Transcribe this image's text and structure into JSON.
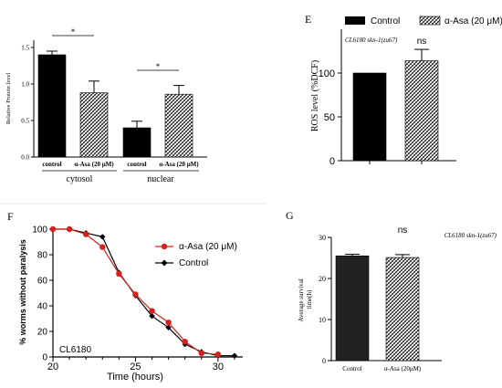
{
  "chart_data": [
    {
      "panel": "",
      "type": "bar",
      "title": "",
      "xlabel": "",
      "ylabel": "Relative Protein level",
      "ylim": [
        0,
        1.6
      ],
      "yticks": [
        "0.0",
        "0.5",
        "1.0",
        "1.5"
      ],
      "ytick_values": [
        0,
        0.5,
        1.0,
        1.5
      ],
      "categories": [
        "control",
        "α-Asa (20 μM)",
        "control",
        "α-Asa (20 μM)"
      ],
      "groups": [
        "cytosol",
        "nuclear"
      ],
      "values": [
        1.4,
        0.88,
        0.4,
        0.86
      ],
      "errors": [
        0.05,
        0.16,
        0.09,
        0.12
      ],
      "fills": [
        "solid",
        "hatched",
        "solid",
        "hatched"
      ],
      "significance": [
        "*",
        "*"
      ]
    },
    {
      "panel": "E",
      "type": "bar",
      "title": "CL6180 skn-1(zu67)",
      "xlabel": "",
      "ylabel": "ROS level (%DCF)",
      "ylim": [
        0,
        150
      ],
      "yticks": [
        "0",
        "50",
        "100"
      ],
      "ytick_values": [
        0,
        50,
        100
      ],
      "legend": [
        "Control",
        "α-Asa (20 μM)"
      ],
      "legend_position": "top",
      "values": [
        100,
        114
      ],
      "errors": [
        0,
        13
      ],
      "fills": [
        "solid",
        "hatched"
      ],
      "significance": [
        "ns"
      ]
    },
    {
      "panel": "F",
      "type": "line",
      "title": "",
      "xlabel": "Time (hours)",
      "ylabel": "% worms without paralysis",
      "xlim": [
        20,
        31.5
      ],
      "ylim": [
        0,
        100
      ],
      "xticks": [
        "20",
        "25",
        "30"
      ],
      "xtick_values": [
        20,
        25,
        30
      ],
      "yticks": [
        "0",
        "20",
        "40",
        "60",
        "80",
        "100"
      ],
      "ytick_values": [
        0,
        20,
        40,
        60,
        80,
        100
      ],
      "annotation": "CL6180",
      "legend_position": "right",
      "series": [
        {
          "name": "α-Asa (20 μM)",
          "color": "#d62020",
          "marker": "circle",
          "x": [
            20,
            21,
            22,
            23,
            24,
            25,
            26,
            27,
            28,
            29,
            30
          ],
          "y": [
            100,
            100,
            96,
            86,
            65,
            49,
            36,
            27,
            12,
            3,
            2
          ]
        },
        {
          "name": "Control",
          "color": "#000000",
          "marker": "diamond",
          "x": [
            20,
            21,
            22,
            23,
            24,
            25,
            26,
            27,
            28,
            29,
            30,
            31
          ],
          "y": [
            100,
            100,
            97,
            94,
            66,
            48,
            32,
            23,
            10,
            4,
            1,
            1
          ]
        }
      ]
    },
    {
      "panel": "G",
      "type": "bar",
      "title": "CL6180 skn-1(zu67)",
      "xlabel": "",
      "ylabel": "Average survival time(h)",
      "ylim": [
        0,
        30
      ],
      "yticks": [
        "0",
        "10",
        "20",
        "30"
      ],
      "ytick_values": [
        0,
        10,
        20,
        30
      ],
      "categories": [
        "Control",
        "α-Asa (20μM)"
      ],
      "values": [
        25.5,
        25.1
      ],
      "errors": [
        0.4,
        0.7
      ],
      "fills": [
        "dark",
        "hatched"
      ],
      "significance": [
        "ns"
      ]
    }
  ]
}
